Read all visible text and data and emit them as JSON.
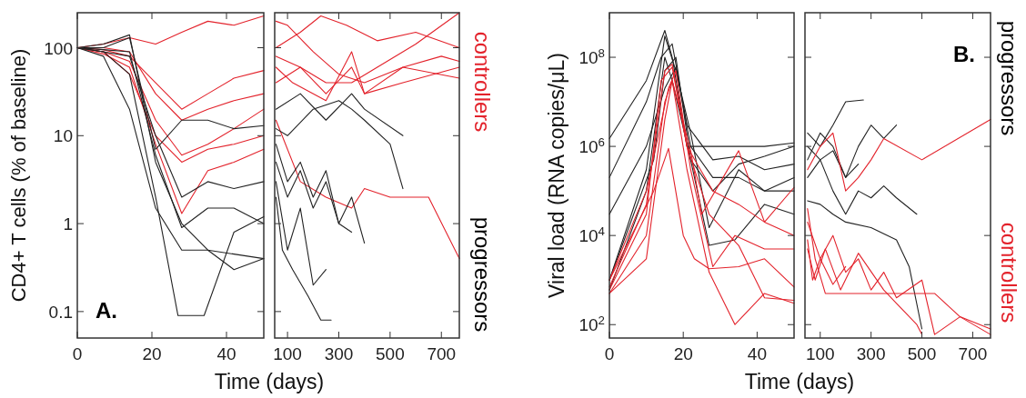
{
  "chart_data": [
    {
      "type": "line",
      "ylabel": "CD4+ T cells (% of baseline)",
      "xlabel": "Time (days)",
      "log": "y",
      "xlim": [
        0,
        50
      ],
      "xticks": [
        0,
        20,
        40
      ],
      "ylim": [
        0.05,
        250
      ],
      "yticks": [
        0.1,
        1,
        10,
        100
      ],
      "annotations": [
        "A."
      ],
      "series": [
        {
          "color": "#e3222b",
          "x": [
            0,
            7,
            14,
            21,
            28,
            35,
            42,
            50
          ],
          "values": [
            100,
            110,
            130,
            110,
            150,
            200,
            180,
            230
          ]
        },
        {
          "color": "#e3222b",
          "x": [
            0,
            7,
            14,
            21,
            28,
            35,
            42,
            50
          ],
          "values": [
            100,
            95,
            80,
            40,
            20,
            30,
            45,
            55
          ]
        },
        {
          "color": "#e3222b",
          "x": [
            0,
            7,
            14,
            21,
            28,
            35,
            42,
            50
          ],
          "values": [
            100,
            90,
            70,
            15,
            6,
            8,
            12,
            20
          ]
        },
        {
          "color": "#e3222b",
          "x": [
            0,
            7,
            14,
            21,
            28,
            35,
            42,
            50
          ],
          "values": [
            100,
            85,
            60,
            8,
            1.3,
            4,
            5,
            7
          ]
        },
        {
          "color": "#e3222b",
          "x": [
            0,
            7,
            14,
            21,
            28,
            35,
            42,
            50
          ],
          "values": [
            100,
            100,
            90,
            30,
            15,
            20,
            25,
            30
          ]
        },
        {
          "color": "#e3222b",
          "x": [
            0,
            7,
            14,
            21,
            28,
            35,
            42,
            50
          ],
          "values": [
            100,
            90,
            50,
            10,
            5,
            7,
            8,
            10
          ]
        },
        {
          "color": "#222222",
          "x": [
            0,
            7,
            14,
            21,
            27,
            34,
            42,
            50
          ],
          "values": [
            100,
            90,
            50,
            2,
            0.09,
            0.09,
            0.8,
            1.2
          ]
        },
        {
          "color": "#222222",
          "x": [
            0,
            7,
            14,
            21,
            28,
            35,
            42,
            50
          ],
          "values": [
            100,
            110,
            140,
            5,
            1,
            0.5,
            0.3,
            0.4
          ]
        },
        {
          "color": "#222222",
          "x": [
            0,
            7,
            14,
            21,
            28,
            35,
            42,
            50
          ],
          "values": [
            100,
            90,
            80,
            10,
            2,
            3,
            2.5,
            3
          ]
        },
        {
          "color": "#222222",
          "x": [
            0,
            7,
            14,
            21,
            28,
            35,
            42,
            50
          ],
          "values": [
            100,
            80,
            20,
            1.5,
            0.5,
            0.5,
            0.45,
            0.4
          ]
        },
        {
          "color": "#222222",
          "x": [
            0,
            7,
            14,
            21,
            28,
            35,
            42,
            50
          ],
          "values": [
            100,
            100,
            130,
            7,
            15,
            15,
            12,
            13
          ]
        },
        {
          "color": "#222222",
          "x": [
            0,
            7,
            14,
            21,
            28,
            35,
            42,
            50
          ],
          "values": [
            100,
            95,
            90,
            6,
            0.9,
            1.5,
            1.5,
            1
          ]
        }
      ]
    },
    {
      "type": "line",
      "log": "y",
      "xlim": [
        50,
        770
      ],
      "xticks": [
        100,
        300,
        500,
        700
      ],
      "ylim": [
        0.05,
        250
      ],
      "yticks": [
        0.1,
        1,
        10,
        100
      ],
      "tick_labels": "x",
      "annotations": [
        "controllers",
        "progressors"
      ],
      "series": [
        {
          "color": "#e3222b",
          "x": [
            55,
            150,
            230,
            330,
            450,
            600,
            770
          ],
          "values": [
            100,
            150,
            230,
            180,
            120,
            150,
            100
          ]
        },
        {
          "color": "#e3222b",
          "x": [
            55,
            120,
            250,
            350,
            400,
            550,
            770
          ],
          "values": [
            60,
            40,
            25,
            90,
            30,
            40,
            60
          ]
        },
        {
          "color": "#e3222b",
          "x": [
            55,
            150,
            250,
            350,
            400,
            550,
            770
          ],
          "values": [
            40,
            60,
            30,
            60,
            30,
            60,
            45
          ]
        },
        {
          "color": "#e3222b",
          "x": [
            55,
            100,
            200,
            300,
            400,
            550,
            700,
            770
          ],
          "values": [
            200,
            180,
            90,
            50,
            40,
            60,
            80,
            70
          ]
        },
        {
          "color": "#e3222b",
          "x": [
            55,
            150,
            250,
            350,
            400,
            500,
            650,
            770
          ],
          "values": [
            15,
            3,
            2,
            1.5,
            2.5,
            2,
            2,
            0.4
          ]
        },
        {
          "color": "#e3222b",
          "x": [
            55,
            150,
            250,
            350,
            450,
            600,
            770
          ],
          "values": [
            80,
            60,
            40,
            40,
            60,
            110,
            250
          ]
        },
        {
          "color": "#222222",
          "x": [
            55,
            100,
            200,
            300,
            350,
            400,
            500,
            550
          ],
          "values": [
            12,
            10,
            20,
            25,
            20,
            15,
            8,
            2.5
          ]
        },
        {
          "color": "#222222",
          "x": [
            55,
            100,
            150,
            200,
            250,
            300,
            350
          ],
          "values": [
            5,
            2,
            4,
            1.5,
            3,
            1,
            0.8
          ]
        },
        {
          "color": "#222222",
          "x": [
            55,
            100,
            150,
            200,
            250
          ],
          "values": [
            3,
            0.5,
            1.5,
            0.2,
            0.3
          ]
        },
        {
          "color": "#222222",
          "x": [
            55,
            100,
            150,
            200,
            250,
            300,
            350,
            400
          ],
          "values": [
            8,
            3,
            5,
            2,
            4,
            1,
            2,
            0.6
          ]
        },
        {
          "color": "#222222",
          "x": [
            55,
            80,
            120,
            180,
            230,
            270
          ],
          "values": [
            2,
            0.5,
            0.3,
            0.15,
            0.08,
            0.08
          ]
        },
        {
          "color": "#222222",
          "x": [
            55,
            150,
            250,
            350,
            400,
            550
          ],
          "values": [
            20,
            30,
            15,
            30,
            20,
            10
          ]
        }
      ]
    },
    {
      "type": "line",
      "ylabel": "Viral load (RNA copies/μL)",
      "xlabel": "Time (days)",
      "log": "y",
      "xlim": [
        0,
        50
      ],
      "xticks": [
        0,
        20,
        40
      ],
      "ylim": [
        50,
        1000000000
      ],
      "yticks": [
        {
          "value": 100,
          "label": "10$^{2}$"
        },
        {
          "value": 10000,
          "label": "10$^{4}$"
        },
        {
          "value": 1000000,
          "label": "10$^{6}$"
        },
        {
          "value": 100000000,
          "label": "10$^{8}$"
        }
      ],
      "series": [
        {
          "color": "#222222",
          "x": [
            0,
            10,
            15,
            17,
            21,
            28,
            35,
            42,
            50
          ],
          "values": [
            1500000,
            30000000,
            400000000,
            100000000,
            1000000,
            1000000,
            1000000,
            1000000,
            1200000
          ]
        },
        {
          "color": "#222222",
          "x": [
            0,
            10,
            14,
            17,
            21,
            28,
            35,
            42,
            50
          ],
          "values": [
            200000,
            10000000,
            100000000,
            200000000,
            3000000,
            500000,
            600000,
            300000,
            400000
          ]
        },
        {
          "color": "#222222",
          "x": [
            0,
            10,
            15,
            18,
            22,
            27,
            35,
            42,
            50
          ],
          "values": [
            1000,
            300000,
            300000000,
            50000000,
            2000000,
            15000,
            300000,
            100000,
            200000
          ]
        },
        {
          "color": "#222222",
          "x": [
            0,
            10,
            15,
            17,
            22,
            27,
            34,
            42,
            50
          ],
          "values": [
            600,
            100000,
            100000000,
            30000000,
            500000,
            6000,
            8000,
            50000,
            30000
          ]
        },
        {
          "color": "#222222",
          "x": [
            0,
            10,
            15,
            18,
            22,
            28,
            35,
            42,
            50
          ],
          "values": [
            30000,
            1000000,
            20000000,
            60000000,
            1000000,
            200000,
            200000,
            100000,
            100000
          ]
        },
        {
          "color": "#222222",
          "x": [
            0,
            12,
            15,
            18,
            22,
            28,
            35,
            42,
            50
          ],
          "values": [
            1000,
            500000,
            50000000,
            100000000,
            500000,
            100000,
            400000,
            600000,
            1000000
          ]
        },
        {
          "color": "#e3222b",
          "x": [
            0,
            10,
            14,
            17,
            21,
            28,
            35,
            42,
            50
          ],
          "values": [
            600,
            30000,
            30000000,
            60000000,
            1000000,
            100000,
            50000,
            20000,
            10000
          ]
        },
        {
          "color": "#e3222b",
          "x": [
            0,
            10,
            15,
            17,
            21,
            27,
            34,
            42,
            50
          ],
          "values": [
            500,
            10000,
            10000000,
            30000000,
            300000,
            1500,
            100,
            500,
            300
          ]
        },
        {
          "color": "#e3222b",
          "x": [
            0,
            12,
            16,
            20,
            23,
            27,
            35,
            42,
            50
          ],
          "values": [
            1000,
            100000,
            900000,
            10000,
            3000,
            1800,
            2000,
            3000,
            700
          ]
        },
        {
          "color": "#e3222b",
          "x": [
            0,
            10,
            15,
            17,
            22,
            25,
            35,
            42,
            50
          ],
          "values": [
            500,
            3000,
            4000000,
            30000000,
            800000,
            30000,
            800000,
            20000,
            120000
          ]
        },
        {
          "color": "#e3222b",
          "x": [
            0,
            10,
            15,
            17,
            21,
            27,
            35,
            42,
            50
          ],
          "values": [
            700,
            50000,
            50000000,
            70000000,
            1000000,
            30000,
            6000,
            400,
            350
          ]
        },
        {
          "color": "#e3222b",
          "x": [
            0,
            10,
            16,
            18,
            22,
            28,
            34,
            42,
            50
          ],
          "values": [
            1000,
            100000,
            20000000,
            50000000,
            300000,
            2000,
            10000,
            5000,
            5000
          ]
        }
      ]
    },
    {
      "type": "line",
      "log": "y",
      "xlim": [
        40,
        770
      ],
      "xticks": [
        100,
        300,
        500,
        700
      ],
      "ylim": [
        50,
        1000000000
      ],
      "yticks": [
        100,
        10000,
        1000000,
        100000000
      ],
      "tick_labels": "x",
      "annotations": [
        "B.",
        "progressors",
        "controllers"
      ],
      "series": [
        {
          "color": "#222222",
          "x": [
            50,
            100,
            150,
            200,
            270
          ],
          "values": [
            2000000,
            1000000,
            3000000,
            10000000,
            11000000
          ]
        },
        {
          "color": "#222222",
          "x": [
            50,
            100,
            150,
            200,
            250,
            300,
            350,
            400
          ],
          "values": [
            500000,
            2000000,
            1000000,
            200000,
            1000000,
            3000000,
            1500000,
            3000000
          ]
        },
        {
          "color": "#222222",
          "x": [
            50,
            100,
            150,
            200,
            250,
            300,
            350,
            400,
            480
          ],
          "values": [
            200000,
            500000,
            100000,
            30000,
            100000,
            70000,
            130000,
            70000,
            30000
          ]
        },
        {
          "color": "#222222",
          "x": [
            50,
            100,
            150,
            200,
            300,
            400,
            450,
            500
          ],
          "values": [
            60000,
            50000,
            30000,
            20000,
            15000,
            8000,
            2000,
            80
          ]
        },
        {
          "color": "#222222",
          "x": [
            50,
            100,
            150,
            200,
            250
          ],
          "values": [
            1000000,
            500000,
            800000,
            200000,
            400000
          ]
        },
        {
          "color": "#e3222b",
          "x": [
            50,
            100,
            150,
            200,
            250,
            300,
            350,
            500,
            770
          ],
          "values": [
            300000,
            1000000,
            2000000,
            100000,
            200000,
            500000,
            1500000,
            500000,
            4000000
          ]
        },
        {
          "color": "#e3222b",
          "x": [
            50,
            80,
            120,
            200,
            350,
            500,
            550,
            650,
            770
          ],
          "values": [
            40000,
            3000,
            500,
            500,
            500,
            500,
            500,
            150,
            80
          ]
        },
        {
          "color": "#e3222b",
          "x": [
            50,
            100,
            150,
            200,
            250,
            300,
            350,
            400,
            500,
            550,
            650,
            770
          ],
          "values": [
            20000,
            3000,
            10000,
            1500,
            3000,
            600,
            1500,
            400,
            1000,
            60,
            150,
            60
          ]
        },
        {
          "color": "#e3222b",
          "x": [
            50,
            80,
            120,
            180,
            250,
            350,
            400,
            480,
            500
          ],
          "values": [
            5000,
            1000,
            5000,
            600,
            4000,
            600,
            300,
            100,
            60
          ]
        },
        {
          "color": "#e3222b",
          "x": [
            50,
            70,
            100,
            150,
            200
          ],
          "values": [
            8000,
            1000,
            3000,
            800,
            2000
          ]
        }
      ]
    }
  ]
}
